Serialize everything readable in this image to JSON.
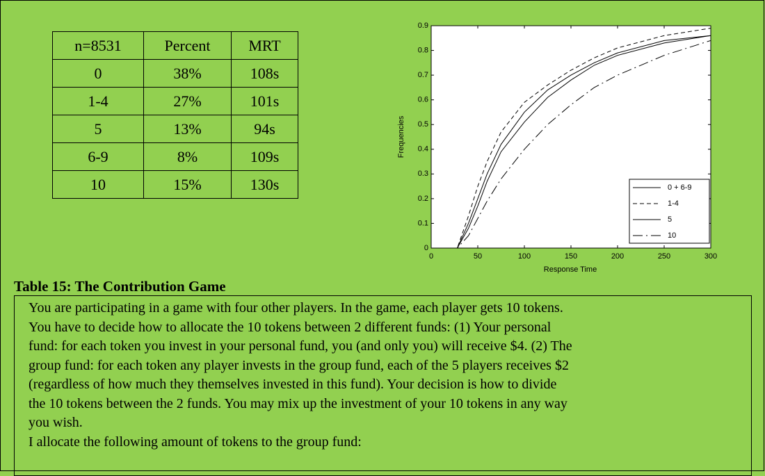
{
  "table": {
    "header": [
      "n=8531",
      "Percent",
      "MRT"
    ],
    "rows": [
      [
        "0",
        "38%",
        "108s"
      ],
      [
        "1-4",
        "27%",
        "101s"
      ],
      [
        "5",
        "13%",
        "94s"
      ],
      [
        "6-9",
        "8%",
        "109s"
      ],
      [
        "10",
        "15%",
        "130s"
      ]
    ]
  },
  "chart_data": {
    "type": "line",
    "xlabel": "Response Time",
    "ylabel": "Frequencies",
    "x": [
      0,
      28,
      40,
      50,
      60,
      75,
      100,
      125,
      150,
      175,
      200,
      250,
      300
    ],
    "series": [
      {
        "name": "0 + 6-9",
        "color": "#000000",
        "dash": "solid",
        "values": [
          0,
          0,
          0.1,
          0.2,
          0.3,
          0.42,
          0.55,
          0.64,
          0.7,
          0.75,
          0.79,
          0.84,
          0.86
        ]
      },
      {
        "name": "1-4",
        "color": "#000000",
        "dash": "dashed",
        "values": [
          0,
          0,
          0.13,
          0.25,
          0.35,
          0.47,
          0.59,
          0.66,
          0.72,
          0.77,
          0.81,
          0.86,
          0.89
        ]
      },
      {
        "name": "5",
        "color": "#000000",
        "dash": "solid",
        "values": [
          0,
          0,
          0.08,
          0.17,
          0.27,
          0.39,
          0.51,
          0.61,
          0.68,
          0.74,
          0.78,
          0.83,
          0.86
        ]
      },
      {
        "name": "10",
        "color": "#000000",
        "dash": "longdash",
        "values": [
          0,
          0,
          0.05,
          0.12,
          0.19,
          0.28,
          0.4,
          0.5,
          0.58,
          0.65,
          0.7,
          0.78,
          0.84
        ]
      }
    ],
    "xlim": [
      0,
      300
    ],
    "xticks": [
      0,
      50,
      100,
      150,
      200,
      250,
      300
    ],
    "ylim": [
      0,
      0.9
    ],
    "yticks": [
      0,
      0.1,
      0.2,
      0.3,
      0.4,
      0.5,
      0.6,
      0.7,
      0.8,
      0.9
    ],
    "legend": "lower right"
  },
  "caption": "Table 15: The Contribution Game",
  "prompt": {
    "lines": [
      "You are participating in a game with four other players. In the game, each player gets 10 tokens.",
      "You have to decide how to allocate the 10 tokens between 2 different funds: (1) Your personal",
      "fund: for each token you invest in your personal fund, you (and only you) will receive $4. (2) The",
      "group fund: for each token any player invests in the group fund, each of the 5 players receives $2",
      "(regardless of how much they themselves invested in this fund). Your decision is how to divide",
      "the 10 tokens between the 2 funds. You may mix up the investment of your 10 tokens in any way",
      "you wish.",
      "I allocate the following amount of tokens to the group fund:"
    ]
  }
}
